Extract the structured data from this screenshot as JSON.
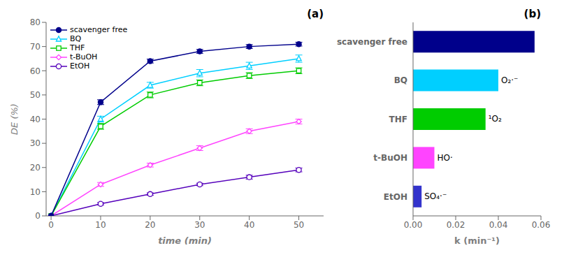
{
  "chart_data": [
    {
      "type": "line",
      "x": [
        0,
        10,
        20,
        30,
        40,
        50
      ],
      "series": [
        {
          "name": "scavenger free",
          "color": "#00008B",
          "marker": "circle",
          "values": [
            0,
            47,
            64,
            68,
            70,
            71
          ],
          "errors": [
            0,
            1.0,
            0.8,
            0.8,
            0.8,
            0.8
          ]
        },
        {
          "name": "BQ",
          "color": "#00CFFF",
          "marker": "triangle-open",
          "values": [
            0,
            40,
            54,
            59,
            62,
            65
          ],
          "errors": [
            0,
            1.2,
            1.2,
            1.5,
            1.5,
            1.5
          ]
        },
        {
          "name": "THF",
          "color": "#00CC00",
          "marker": "square-open",
          "values": [
            0,
            37,
            50,
            55,
            58,
            60
          ],
          "errors": [
            0,
            1.2,
            1.2,
            1.2,
            1.2,
            1.2
          ]
        },
        {
          "name": "t-BuOH",
          "color": "#FF44FF",
          "marker": "diamond-open",
          "values": [
            0,
            13,
            21,
            28,
            35,
            39
          ],
          "errors": [
            0,
            0.8,
            0.8,
            1.0,
            1.0,
            1.0
          ]
        },
        {
          "name": "EtOH",
          "color": "#5500BB",
          "marker": "circle-open",
          "values": [
            0,
            5,
            9,
            13,
            16,
            19
          ],
          "errors": [
            0,
            0.5,
            0.5,
            0.5,
            0.8,
            0.8
          ]
        }
      ],
      "xlim": [
        -1,
        55
      ],
      "ylim": [
        0,
        80
      ],
      "xticks": [
        0,
        10,
        20,
        30,
        40,
        50
      ],
      "yticks": [
        0,
        10,
        20,
        30,
        40,
        50,
        60,
        70,
        80
      ],
      "xlabel": "time (min)",
      "ylabel": "DE (%)",
      "annotations": [
        "(a)"
      ],
      "legend": "upper left",
      "grid": false
    },
    {
      "type": "bar",
      "orientation": "horizontal",
      "categories": [
        "scavenger free",
        "BQ",
        "THF",
        "t-BuOH",
        "EtOH"
      ],
      "values": [
        0.057,
        0.04,
        0.034,
        0.01,
        0.004
      ],
      "colors": [
        "#00008B",
        "#00CFFF",
        "#00CC00",
        "#FF44FF",
        "#3333CC"
      ],
      "bar_annotations": [
        null,
        "O₂·⁻",
        "¹O₂",
        "HO·",
        "SO₄·⁻"
      ],
      "xlim": [
        0,
        0.06
      ],
      "xticks": [
        {
          "value": 0,
          "label": "0.00"
        },
        0.02,
        0.04,
        0.06
      ],
      "xlabel": "k (min⁻¹)",
      "annotations": [
        "(b)"
      ],
      "grid": false
    }
  ]
}
